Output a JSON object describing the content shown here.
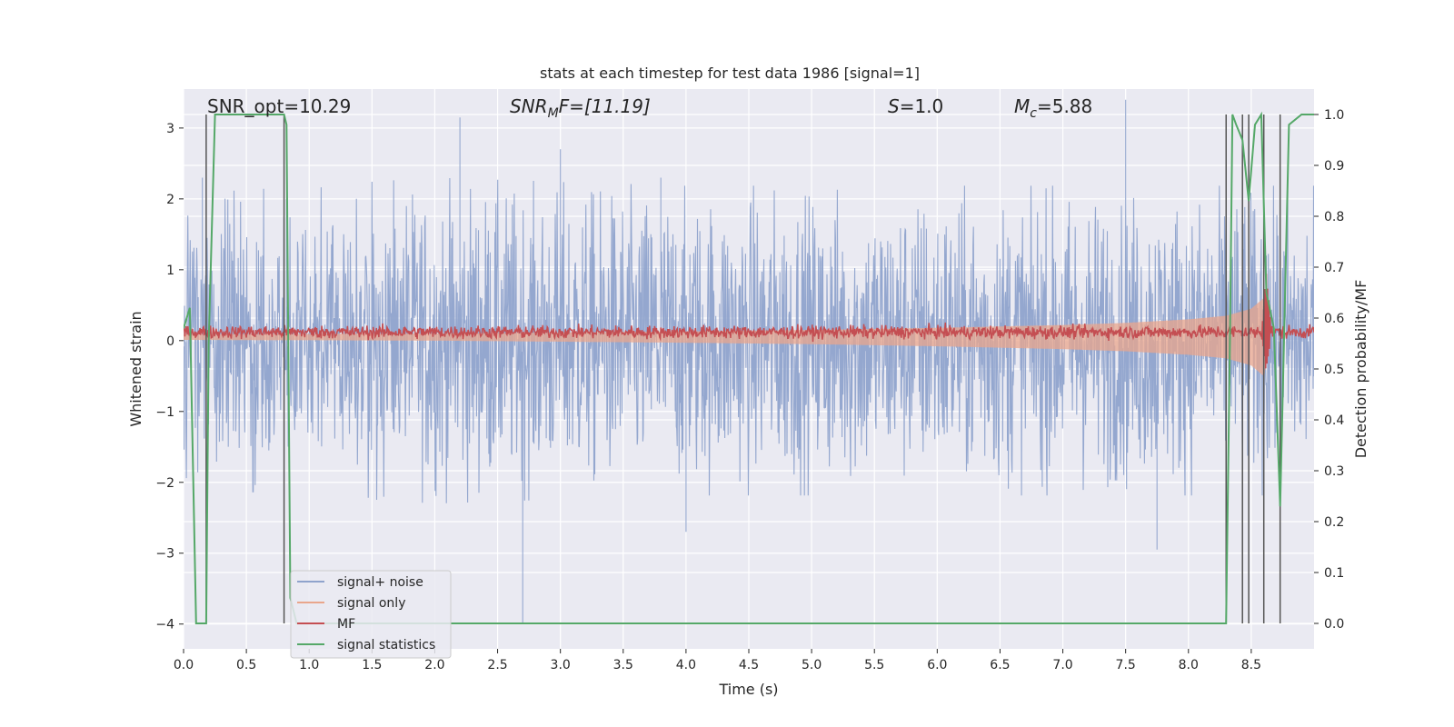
{
  "chart_data": {
    "type": "line",
    "title": "stats at each timestep for test data 1986 [signal=1]",
    "xlabel": "Time (s)",
    "ylabel": "Whitened strain",
    "y2label": "Detection probability/MF",
    "xlim": [
      0.0,
      9.0
    ],
    "ylim": [
      -4.35,
      3.55
    ],
    "y2lim": [
      -0.05,
      1.05
    ],
    "x_ticks": [
      "0.0",
      "0.5",
      "1.0",
      "1.5",
      "2.0",
      "2.5",
      "3.0",
      "3.5",
      "4.0",
      "4.5",
      "5.0",
      "5.5",
      "6.0",
      "6.5",
      "7.0",
      "7.5",
      "8.0",
      "8.5"
    ],
    "y_ticks": [
      "3",
      "2",
      "1",
      "0",
      "−1",
      "−2",
      "−3",
      "−4"
    ],
    "y2_ticks": [
      "1.0",
      "0.9",
      "0.8",
      "0.7",
      "0.6",
      "0.5",
      "0.4",
      "0.3",
      "0.2",
      "0.1",
      "0.0"
    ],
    "grid": true,
    "legend_position": "lower-left",
    "annotations": {
      "snr_opt": "SNR_opt=10.29",
      "snr_mf_base": "SNR",
      "snr_mf_sub": "M",
      "snr_mf_rest": "F=[11.19]",
      "s_sym": "S",
      "s_val": "=1.0",
      "mc_sym": "M",
      "mc_sub": "c",
      "mc_val": "=5.88"
    },
    "series": [
      {
        "name": "signal+ noise",
        "color": "#8fa3cc",
        "description_axis": "left",
        "amplitude_envelope": [
          [
            0.0,
            1.8
          ],
          [
            2.0,
            2.0
          ],
          [
            4.0,
            1.9
          ],
          [
            6.0,
            1.9
          ],
          [
            8.0,
            1.9
          ],
          [
            9.0,
            1.9
          ]
        ],
        "spikes": [
          [
            0.15,
            2.3
          ],
          [
            0.18,
            -2.45
          ],
          [
            0.82,
            2.0
          ],
          [
            2.2,
            3.15
          ],
          [
            2.7,
            -4.0
          ],
          [
            3.0,
            2.7
          ],
          [
            3.8,
            2.3
          ],
          [
            4.0,
            -2.7
          ],
          [
            7.5,
            3.4
          ],
          [
            7.75,
            -2.95
          ],
          [
            8.62,
            1.2
          ],
          [
            8.63,
            -1.0
          ]
        ]
      },
      {
        "name": "signal only",
        "color": "#e9a68c",
        "description_axis": "left",
        "chirp_envelope": [
          [
            0.0,
            0.04
          ],
          [
            2.0,
            0.05
          ],
          [
            4.0,
            0.08
          ],
          [
            5.0,
            0.1
          ],
          [
            6.0,
            0.13
          ],
          [
            7.0,
            0.17
          ],
          [
            7.5,
            0.2
          ],
          [
            8.0,
            0.25
          ],
          [
            8.3,
            0.3
          ],
          [
            8.5,
            0.4
          ],
          [
            8.6,
            0.55
          ],
          [
            8.63,
            0.3
          ]
        ]
      },
      {
        "name": "MF",
        "color": "#c44e52",
        "description_axis": "left",
        "baseline": 0.12,
        "noise_amplitude": 0.1,
        "peak": [
          8.62,
          0.95
        ]
      },
      {
        "name": "signal statistics",
        "color": "#55a868",
        "description_axis": "right",
        "x": [
          0.0,
          0.05,
          0.1,
          0.12,
          0.18,
          0.2,
          0.25,
          0.3,
          0.8,
          0.82,
          0.85,
          0.9,
          8.25,
          8.3,
          8.33,
          8.35,
          8.38,
          8.43,
          8.48,
          8.53,
          8.58,
          8.62,
          8.68,
          8.73,
          8.8,
          8.9,
          9.0
        ],
        "y": [
          0.58,
          0.62,
          0.0,
          0.0,
          0.0,
          0.55,
          1.0,
          1.0,
          1.0,
          0.98,
          0.05,
          0.0,
          0.0,
          0.0,
          0.55,
          1.0,
          0.98,
          0.95,
          0.83,
          0.98,
          1.0,
          0.65,
          0.58,
          0.23,
          0.98,
          1.0,
          1.0
        ]
      }
    ],
    "vertical_lines": [
      0.18,
      0.8,
      8.3,
      8.43,
      8.48,
      8.6,
      8.73
    ]
  }
}
